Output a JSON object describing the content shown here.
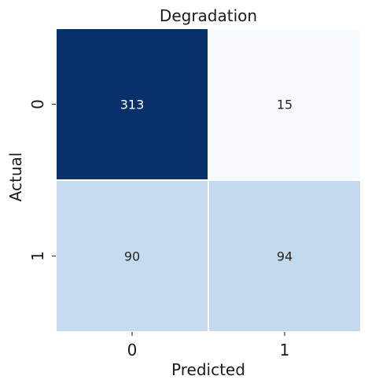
{
  "chart_data": {
    "type": "heatmap",
    "title": "Degradation",
    "xlabel": "Predicted",
    "ylabel": "Actual",
    "x_categories": [
      "0",
      "1"
    ],
    "y_categories": [
      "0",
      "1"
    ],
    "values": [
      [
        313,
        15
      ],
      [
        90,
        94
      ]
    ],
    "value_range": [
      15,
      313
    ],
    "colormap": "Blues",
    "colorbar": false,
    "grid": false,
    "cell_border_color": "#ffffff",
    "colors": {
      "313": "#08306b",
      "15": "#f7fbff",
      "90": "#c6dbef",
      "94": "#c3d9ee"
    },
    "text_colors": {
      "dark_cell": "#ffffff",
      "light_cell": "#262626"
    }
  }
}
